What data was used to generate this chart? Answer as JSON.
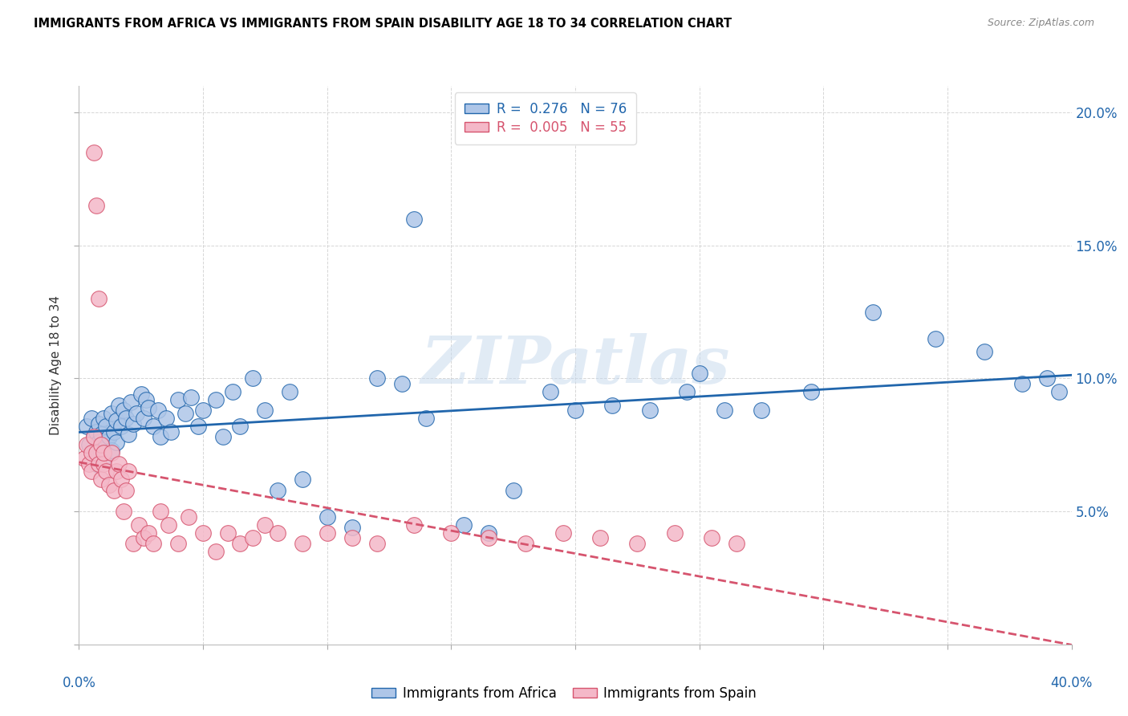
{
  "title": "IMMIGRANTS FROM AFRICA VS IMMIGRANTS FROM SPAIN DISABILITY AGE 18 TO 34 CORRELATION CHART",
  "source": "Source: ZipAtlas.com",
  "ylabel": "Disability Age 18 to 34",
  "xlim": [
    0.0,
    0.4
  ],
  "ylim": [
    0.0,
    0.21
  ],
  "xtick_positions": [
    0.0,
    0.05,
    0.1,
    0.15,
    0.2,
    0.25,
    0.3,
    0.35,
    0.4
  ],
  "ytick_positions": [
    0.0,
    0.05,
    0.1,
    0.15,
    0.2
  ],
  "africa_R": 0.276,
  "africa_N": 76,
  "spain_R": 0.005,
  "spain_N": 55,
  "africa_color": "#aec6e8",
  "africa_line_color": "#2166ac",
  "spain_color": "#f4b8c8",
  "spain_line_color": "#d6546e",
  "watermark": "ZIPatlas",
  "africa_scatter_x": [
    0.003,
    0.004,
    0.005,
    0.006,
    0.006,
    0.007,
    0.007,
    0.008,
    0.008,
    0.009,
    0.009,
    0.01,
    0.01,
    0.011,
    0.011,
    0.012,
    0.013,
    0.013,
    0.014,
    0.015,
    0.015,
    0.016,
    0.017,
    0.018,
    0.019,
    0.02,
    0.021,
    0.022,
    0.023,
    0.025,
    0.026,
    0.027,
    0.028,
    0.03,
    0.032,
    0.033,
    0.035,
    0.037,
    0.04,
    0.043,
    0.045,
    0.048,
    0.05,
    0.055,
    0.058,
    0.062,
    0.065,
    0.07,
    0.075,
    0.08,
    0.085,
    0.09,
    0.1,
    0.11,
    0.12,
    0.13,
    0.14,
    0.155,
    0.165,
    0.175,
    0.19,
    0.2,
    0.215,
    0.23,
    0.245,
    0.26,
    0.275,
    0.295,
    0.32,
    0.345,
    0.365,
    0.38,
    0.39,
    0.395,
    0.135,
    0.25
  ],
  "africa_scatter_y": [
    0.082,
    0.075,
    0.085,
    0.078,
    0.072,
    0.08,
    0.068,
    0.083,
    0.076,
    0.079,
    0.072,
    0.085,
    0.07,
    0.082,
    0.076,
    0.078,
    0.073,
    0.087,
    0.08,
    0.084,
    0.076,
    0.09,
    0.082,
    0.088,
    0.085,
    0.079,
    0.091,
    0.083,
    0.087,
    0.094,
    0.085,
    0.092,
    0.089,
    0.082,
    0.088,
    0.078,
    0.085,
    0.08,
    0.092,
    0.087,
    0.093,
    0.082,
    0.088,
    0.092,
    0.078,
    0.095,
    0.082,
    0.1,
    0.088,
    0.058,
    0.095,
    0.062,
    0.048,
    0.044,
    0.1,
    0.098,
    0.085,
    0.045,
    0.042,
    0.058,
    0.095,
    0.088,
    0.09,
    0.088,
    0.095,
    0.088,
    0.088,
    0.095,
    0.125,
    0.115,
    0.11,
    0.098,
    0.1,
    0.095,
    0.16,
    0.102
  ],
  "spain_scatter_x": [
    0.002,
    0.003,
    0.004,
    0.005,
    0.005,
    0.006,
    0.006,
    0.007,
    0.007,
    0.008,
    0.008,
    0.009,
    0.009,
    0.01,
    0.01,
    0.011,
    0.012,
    0.013,
    0.014,
    0.015,
    0.016,
    0.017,
    0.018,
    0.019,
    0.02,
    0.022,
    0.024,
    0.026,
    0.028,
    0.03,
    0.033,
    0.036,
    0.04,
    0.044,
    0.05,
    0.055,
    0.06,
    0.065,
    0.07,
    0.075,
    0.08,
    0.09,
    0.1,
    0.11,
    0.12,
    0.135,
    0.15,
    0.165,
    0.18,
    0.195,
    0.21,
    0.225,
    0.24,
    0.255,
    0.265
  ],
  "spain_scatter_y": [
    0.07,
    0.075,
    0.068,
    0.072,
    0.065,
    0.078,
    0.185,
    0.072,
    0.165,
    0.13,
    0.068,
    0.075,
    0.062,
    0.068,
    0.072,
    0.065,
    0.06,
    0.072,
    0.058,
    0.065,
    0.068,
    0.062,
    0.05,
    0.058,
    0.065,
    0.038,
    0.045,
    0.04,
    0.042,
    0.038,
    0.05,
    0.045,
    0.038,
    0.048,
    0.042,
    0.035,
    0.042,
    0.038,
    0.04,
    0.045,
    0.042,
    0.038,
    0.042,
    0.04,
    0.038,
    0.045,
    0.042,
    0.04,
    0.038,
    0.042,
    0.04,
    0.038,
    0.042,
    0.04,
    0.038
  ]
}
